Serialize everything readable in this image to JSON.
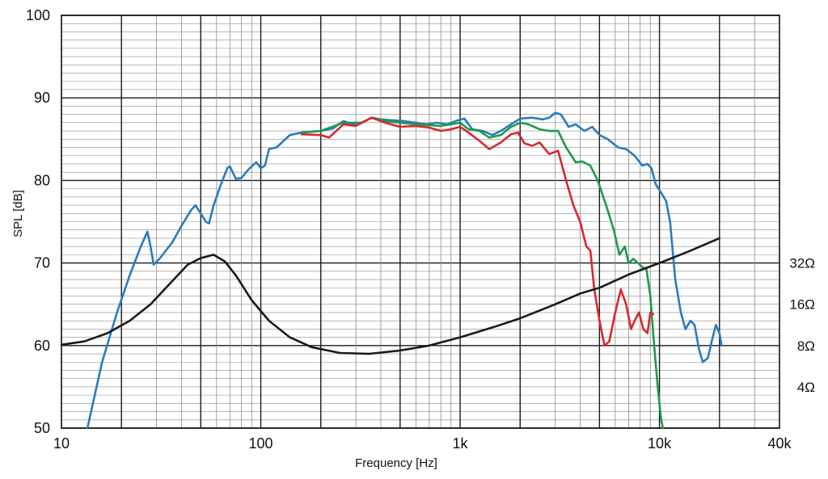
{
  "chart_data": {
    "type": "line",
    "title": "",
    "xlabel": "Frequency [Hz]",
    "ylabel": "SPL [dB]",
    "xscale": "log",
    "xlim": [
      10,
      40000
    ],
    "ylim": [
      50,
      100
    ],
    "grid": true,
    "legend": "none",
    "x_tick_labels": [
      {
        "value": 10,
        "label": "10"
      },
      {
        "value": 100,
        "label": "100"
      },
      {
        "value": 1000,
        "label": "1k"
      },
      {
        "value": 10000,
        "label": "10k"
      },
      {
        "value": 40000,
        "label": "40k"
      }
    ],
    "y_tick_labels": [
      {
        "value": 50,
        "label": "50"
      },
      {
        "value": 60,
        "label": "60"
      },
      {
        "value": 70,
        "label": "70"
      },
      {
        "value": 80,
        "label": "80"
      },
      {
        "value": 90,
        "label": "90"
      },
      {
        "value": 100,
        "label": "100"
      }
    ],
    "impedance_labels": [
      {
        "value": 70,
        "label": "32Ω"
      },
      {
        "value": 65,
        "label": "16Ω"
      },
      {
        "value": 60,
        "label": "8Ω"
      },
      {
        "value": 55,
        "label": "4Ω"
      }
    ],
    "series": [
      {
        "color": "#2b7bbd",
        "points": [
          [
            13.5,
            50
          ],
          [
            16,
            58
          ],
          [
            19,
            64
          ],
          [
            22,
            68.5
          ],
          [
            25,
            72
          ],
          [
            27,
            73.8
          ],
          [
            28,
            72
          ],
          [
            29,
            69.8
          ],
          [
            31,
            70.5
          ],
          [
            36,
            72.5
          ],
          [
            40,
            74.5
          ],
          [
            45,
            76.5
          ],
          [
            47,
            77
          ],
          [
            50,
            76
          ],
          [
            53,
            75
          ],
          [
            55,
            74.8
          ],
          [
            58,
            77
          ],
          [
            63,
            79.5
          ],
          [
            68,
            81.5
          ],
          [
            70,
            81.7
          ],
          [
            75,
            80.2
          ],
          [
            80,
            80.3
          ],
          [
            88,
            81.5
          ],
          [
            95,
            82.2
          ],
          [
            100,
            81.5
          ],
          [
            105,
            81.8
          ],
          [
            110,
            83.8
          ],
          [
            120,
            84
          ],
          [
            140,
            85.5
          ],
          [
            160,
            85.8
          ],
          [
            200,
            86
          ],
          [
            230,
            86.3
          ],
          [
            260,
            87.2
          ],
          [
            290,
            86.8
          ],
          [
            320,
            87
          ],
          [
            360,
            87.6
          ],
          [
            400,
            87.4
          ],
          [
            450,
            87.3
          ],
          [
            520,
            87.2
          ],
          [
            600,
            87
          ],
          [
            680,
            86.8
          ],
          [
            760,
            87
          ],
          [
            860,
            86.8
          ],
          [
            950,
            87.2
          ],
          [
            1050,
            87.5
          ],
          [
            1150,
            86.2
          ],
          [
            1300,
            86
          ],
          [
            1450,
            85.5
          ],
          [
            1600,
            86
          ],
          [
            1800,
            86.8
          ],
          [
            2000,
            87.5
          ],
          [
            2300,
            87.6
          ],
          [
            2600,
            87.4
          ],
          [
            2800,
            87.6
          ],
          [
            3000,
            88.2
          ],
          [
            3200,
            88
          ],
          [
            3500,
            86.5
          ],
          [
            3800,
            86.8
          ],
          [
            4200,
            86
          ],
          [
            4600,
            86.5
          ],
          [
            5000,
            85.5
          ],
          [
            5500,
            85
          ],
          [
            6200,
            84
          ],
          [
            6800,
            83.8
          ],
          [
            7500,
            83
          ],
          [
            8200,
            81.8
          ],
          [
            8700,
            82
          ],
          [
            9100,
            81.5
          ],
          [
            9600,
            79.5
          ],
          [
            10200,
            78.5
          ],
          [
            10800,
            77.5
          ],
          [
            11300,
            75
          ],
          [
            12000,
            68
          ],
          [
            12800,
            64
          ],
          [
            13500,
            62
          ],
          [
            14300,
            63
          ],
          [
            15000,
            62.5
          ],
          [
            15800,
            59.5
          ],
          [
            16500,
            58
          ],
          [
            17500,
            58.5
          ],
          [
            18500,
            61
          ],
          [
            19200,
            62.5
          ],
          [
            20000,
            61.5
          ],
          [
            20500,
            60
          ]
        ]
      },
      {
        "color": "#1f9a4a",
        "points": [
          [
            160,
            85.8
          ],
          [
            200,
            86
          ],
          [
            260,
            87
          ],
          [
            320,
            87
          ],
          [
            360,
            87.6
          ],
          [
            420,
            87.2
          ],
          [
            500,
            87
          ],
          [
            600,
            86.8
          ],
          [
            700,
            86.7
          ],
          [
            800,
            86.6
          ],
          [
            900,
            86.8
          ],
          [
            1000,
            87
          ],
          [
            1100,
            86.2
          ],
          [
            1250,
            86
          ],
          [
            1400,
            85.2
          ],
          [
            1600,
            85.5
          ],
          [
            1800,
            86.5
          ],
          [
            2000,
            87
          ],
          [
            2200,
            86.8
          ],
          [
            2500,
            86.2
          ],
          [
            2800,
            86
          ],
          [
            3100,
            86
          ],
          [
            3400,
            84
          ],
          [
            3800,
            82.2
          ],
          [
            4100,
            82.3
          ],
          [
            4500,
            81.8
          ],
          [
            4900,
            80
          ],
          [
            5400,
            77
          ],
          [
            5900,
            74
          ],
          [
            6300,
            71
          ],
          [
            6700,
            72
          ],
          [
            7000,
            70
          ],
          [
            7400,
            70.5
          ],
          [
            7800,
            70
          ],
          [
            8200,
            69.5
          ],
          [
            8600,
            69.3
          ],
          [
            9000,
            66
          ],
          [
            9400,
            60
          ],
          [
            9800,
            55
          ],
          [
            10200,
            51
          ],
          [
            10400,
            50
          ]
        ]
      },
      {
        "color": "#d8282d",
        "points": [
          [
            160,
            85.6
          ],
          [
            200,
            85.5
          ],
          [
            220,
            85.2
          ],
          [
            260,
            86.8
          ],
          [
            300,
            86.6
          ],
          [
            360,
            87.6
          ],
          [
            420,
            87
          ],
          [
            500,
            86.5
          ],
          [
            600,
            86.6
          ],
          [
            700,
            86.4
          ],
          [
            800,
            86
          ],
          [
            900,
            86.2
          ],
          [
            1000,
            86.5
          ],
          [
            1100,
            85.8
          ],
          [
            1250,
            84.8
          ],
          [
            1400,
            83.8
          ],
          [
            1600,
            84.6
          ],
          [
            1800,
            85.6
          ],
          [
            1950,
            85.8
          ],
          [
            2100,
            84.5
          ],
          [
            2300,
            84.2
          ],
          [
            2500,
            84.6
          ],
          [
            2800,
            83.2
          ],
          [
            3100,
            83.6
          ],
          [
            3400,
            80
          ],
          [
            3700,
            77
          ],
          [
            4000,
            75
          ],
          [
            4300,
            72
          ],
          [
            4500,
            71.5
          ],
          [
            4700,
            67
          ],
          [
            5000,
            63
          ],
          [
            5300,
            60
          ],
          [
            5600,
            60.5
          ],
          [
            6000,
            64
          ],
          [
            6400,
            66.8
          ],
          [
            6800,
            65
          ],
          [
            7200,
            62
          ],
          [
            7500,
            63
          ],
          [
            7900,
            64
          ],
          [
            8300,
            62
          ],
          [
            8700,
            61.5
          ],
          [
            9000,
            64
          ],
          [
            9300,
            63.8
          ]
        ]
      },
      {
        "color": "#1a1a1a",
        "points": [
          [
            10,
            60.1
          ],
          [
            13,
            60.5
          ],
          [
            17,
            61.5
          ],
          [
            22,
            63
          ],
          [
            28,
            65
          ],
          [
            35,
            67.5
          ],
          [
            43,
            69.8
          ],
          [
            50,
            70.6
          ],
          [
            58,
            71
          ],
          [
            66,
            70.2
          ],
          [
            75,
            68.5
          ],
          [
            90,
            65.5
          ],
          [
            110,
            63
          ],
          [
            140,
            61
          ],
          [
            180,
            59.8
          ],
          [
            250,
            59.1
          ],
          [
            350,
            59
          ],
          [
            500,
            59.4
          ],
          [
            700,
            60
          ],
          [
            1000,
            61
          ],
          [
            1500,
            62.3
          ],
          [
            2000,
            63.3
          ],
          [
            3000,
            65
          ],
          [
            4000,
            66.3
          ],
          [
            5000,
            67
          ],
          [
            7000,
            68.6
          ],
          [
            10000,
            70
          ],
          [
            14000,
            71.4
          ],
          [
            20000,
            73
          ]
        ]
      }
    ]
  }
}
